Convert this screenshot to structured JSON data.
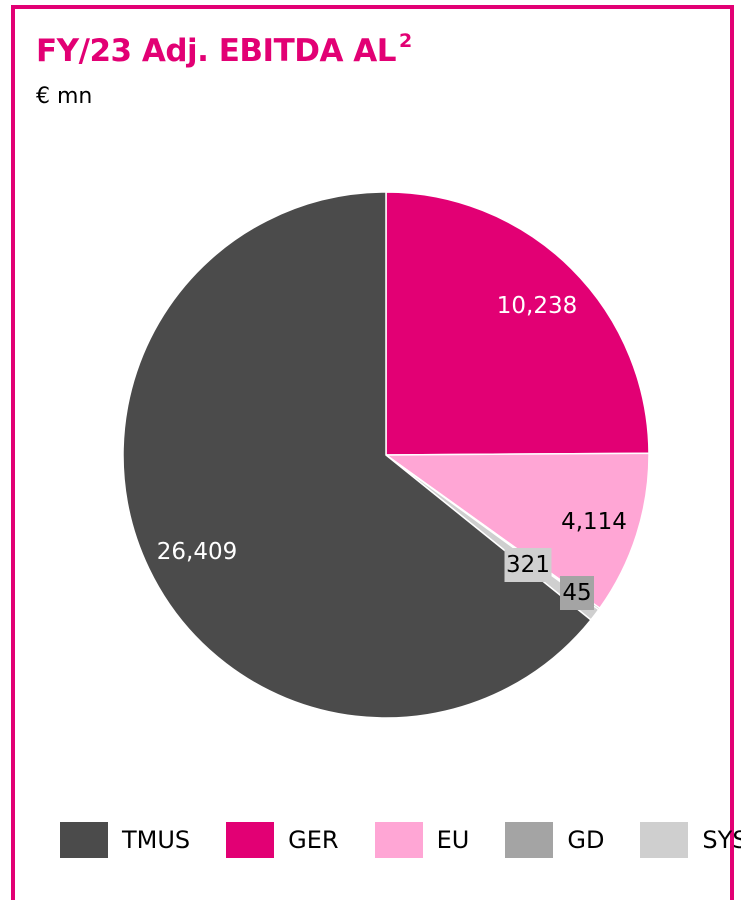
{
  "header": {
    "title": "FY/23 Adj. EBITDA AL",
    "title_sup": "2",
    "unit": "€ mn"
  },
  "colors": {
    "accent": "#e20074",
    "TMUS": "#4b4b4b",
    "GER": "#e20074",
    "EU": "#ffa6d5",
    "GD": "#a4a4a4",
    "SYS": "#cfcfcf"
  },
  "chart_data": {
    "type": "pie",
    "title": "FY/23 Adj. EBITDA AL²",
    "unit": "€ mn",
    "slices": [
      {
        "name": "GER",
        "value": 10238,
        "label": "10,238",
        "color": "#e20074",
        "label_color": "#ffffff"
      },
      {
        "name": "EU",
        "value": 4114,
        "label": "4,114",
        "color": "#ffa6d5",
        "label_color": "#000000"
      },
      {
        "name": "GD",
        "value": 45,
        "label": "45",
        "color": "#a4a4a4",
        "label_color": "#000000"
      },
      {
        "name": "SYS",
        "value": 321,
        "label": "321",
        "color": "#cfcfcf",
        "label_color": "#000000"
      },
      {
        "name": "TMUS",
        "value": 26409,
        "label": "26,409",
        "color": "#4b4b4b",
        "label_color": "#ffffff"
      }
    ],
    "legend": [
      "TMUS",
      "GER",
      "EU",
      "GD",
      "SYS"
    ],
    "legend_placement": "bottom"
  }
}
